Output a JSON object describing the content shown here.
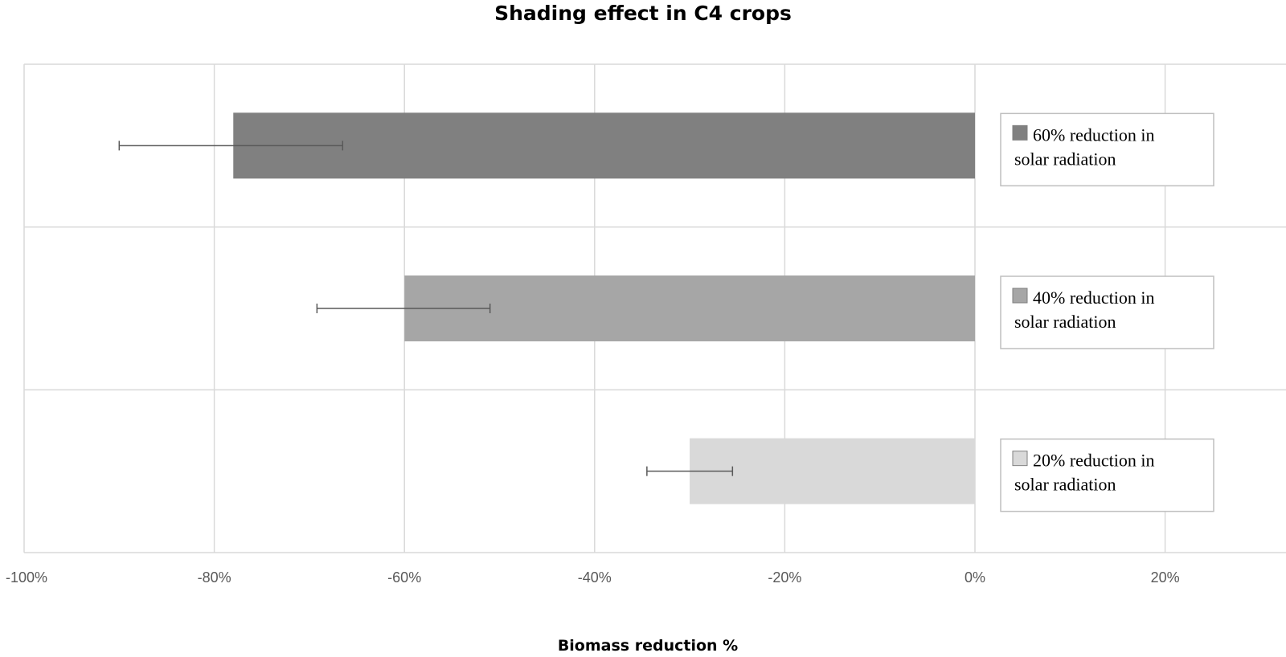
{
  "chart_data": {
    "type": "bar",
    "orientation": "horizontal",
    "title": "Shading effect in C4 crops",
    "xlabel": "Biomass reduction %",
    "ylabel": "",
    "xlim": [
      -100,
      25
    ],
    "x_ticks": [
      -100,
      -80,
      -60,
      -40,
      -20,
      0,
      20
    ],
    "x_tick_labels": [
      "-100%",
      "-80%",
      "-60%",
      "-40%",
      "-20%",
      "0%",
      "20%"
    ],
    "grid": true,
    "series": [
      {
        "legend_lines": [
          "60% reduction in",
          "solar radiation"
        ],
        "value": -78,
        "error_low": -90,
        "error_high": -66.5,
        "color": "#808080"
      },
      {
        "legend_lines": [
          "40% reduction in",
          "solar radiation"
        ],
        "value": -60,
        "error_low": -69.2,
        "error_high": -51,
        "color": "#a6a6a6"
      },
      {
        "legend_lines": [
          "20% reduction in",
          "solar radiation"
        ],
        "value": -30,
        "error_low": -34.5,
        "error_high": -25.5,
        "color": "#d9d9d9"
      }
    ],
    "legend_placement": "right of each bar"
  }
}
